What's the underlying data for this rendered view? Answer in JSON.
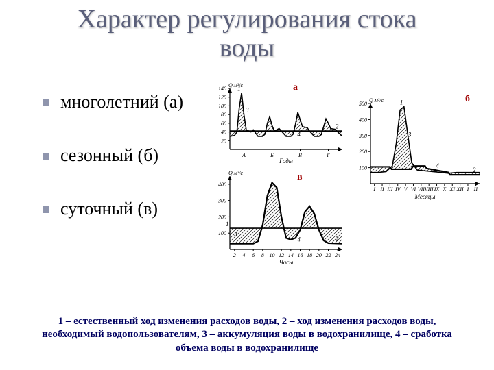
{
  "title_line1": "Характер регулирования стока",
  "title_line2": "воды",
  "bullets": [
    {
      "text": "многолетний (а)"
    },
    {
      "text": "сезонный (б)"
    },
    {
      "text": "суточный (в)"
    }
  ],
  "caption": "1 – естественный ход изменения расходов воды, 2 – ход изменения расходов воды, необходимый водопользователям, 3 – аккумуляция воды в водохранилище, 4 – сработка объема воды в водохранилище",
  "panels": {
    "a": {
      "label": "а",
      "y_label_symbol": "Q м³/с",
      "y_ticks": [
        20,
        40,
        60,
        80,
        100,
        120,
        140
      ],
      "x_label": "Годы",
      "x_ticks": [
        "А",
        "Б",
        "В",
        "Г"
      ],
      "ylim": [
        0,
        140
      ],
      "xlim": [
        0,
        48
      ],
      "background_color": "#ffffff",
      "axis_color": "#000000",
      "hatch_color": "#000000",
      "series_natural": {
        "name": "1",
        "comment": "естественный гидрограф с весенними паводками, 4 года",
        "pts": [
          [
            0,
            30
          ],
          [
            2,
            32
          ],
          [
            3,
            40
          ],
          [
            4,
            95
          ],
          [
            5,
            130
          ],
          [
            6,
            80
          ],
          [
            7,
            45
          ],
          [
            9,
            40
          ],
          [
            10,
            45
          ],
          [
            12,
            30
          ],
          [
            14,
            30
          ],
          [
            15,
            35
          ],
          [
            16,
            60
          ],
          [
            17,
            75
          ],
          [
            18,
            55
          ],
          [
            19,
            42
          ],
          [
            21,
            48
          ],
          [
            22,
            42
          ],
          [
            24,
            30
          ],
          [
            26,
            30
          ],
          [
            27,
            35
          ],
          [
            28,
            58
          ],
          [
            29,
            85
          ],
          [
            30,
            68
          ],
          [
            31,
            52
          ],
          [
            33,
            50
          ],
          [
            34,
            42
          ],
          [
            36,
            30
          ],
          [
            38,
            30
          ],
          [
            39,
            34
          ],
          [
            40,
            52
          ],
          [
            41,
            70
          ],
          [
            42,
            60
          ],
          [
            43,
            48
          ],
          [
            45,
            46
          ],
          [
            46,
            40
          ],
          [
            48,
            30
          ]
        ]
      },
      "series_regulated": {
        "name": "2",
        "level": 42,
        "pts": [
          [
            0,
            42
          ],
          [
            48,
            42
          ]
        ]
      },
      "annot": [
        "1",
        "2",
        "3",
        "4"
      ]
    },
    "b": {
      "label": "б",
      "y_label_symbol": "Q м³/с",
      "y_ticks": [
        100,
        200,
        300,
        400,
        500
      ],
      "x_label": "Месяцы",
      "x_ticks": [
        "I",
        "II",
        "III",
        "IV",
        "V",
        "VI",
        "VII",
        "VIII",
        "IX",
        "X",
        "XI",
        "XII",
        "I",
        "II"
      ],
      "ylim": [
        0,
        500
      ],
      "xlim": [
        0,
        14
      ],
      "background_color": "#ffffff",
      "axis_color": "#000000",
      "hatch_color": "#000000",
      "series_natural": {
        "name": "1",
        "pts": [
          [
            0,
            70
          ],
          [
            1,
            70
          ],
          [
            2,
            75
          ],
          [
            2.8,
            110
          ],
          [
            3.3,
            250
          ],
          [
            3.8,
            460
          ],
          [
            4.3,
            480
          ],
          [
            4.8,
            300
          ],
          [
            5.3,
            130
          ],
          [
            6,
            85
          ],
          [
            7,
            80
          ],
          [
            8,
            75
          ],
          [
            9,
            70
          ],
          [
            10,
            65
          ],
          [
            11,
            70
          ],
          [
            12,
            70
          ],
          [
            13,
            70
          ],
          [
            14,
            70
          ]
        ]
      },
      "series_regulated": {
        "name": "2",
        "pts": [
          [
            0,
            105
          ],
          [
            2.5,
            105
          ],
          [
            2.7,
            90
          ],
          [
            5.2,
            90
          ],
          [
            5.5,
            110
          ],
          [
            7,
            110
          ],
          [
            7.2,
            95
          ],
          [
            10,
            70
          ],
          [
            10.2,
            55
          ],
          [
            14,
            55
          ]
        ]
      },
      "annot": [
        "1",
        "2",
        "3",
        "4"
      ]
    },
    "v": {
      "label": "в",
      "y_label_symbol": "Q м³/с",
      "y_ticks": [
        100,
        200,
        300,
        400
      ],
      "x_label": "Часы",
      "x_ticks": [
        2,
        4,
        6,
        8,
        10,
        12,
        14,
        16,
        18,
        20,
        22,
        24
      ],
      "ylim": [
        0,
        450
      ],
      "xlim": [
        0,
        24
      ],
      "background_color": "#ffffff",
      "axis_color": "#000000",
      "hatch_color": "#000000",
      "series_natural": {
        "name": "1",
        "level": 130,
        "pts": [
          [
            0,
            130
          ],
          [
            24,
            130
          ]
        ]
      },
      "series_regulated": {
        "name": "2",
        "pts": [
          [
            0,
            35
          ],
          [
            5,
            35
          ],
          [
            6,
            50
          ],
          [
            7,
            150
          ],
          [
            8,
            330
          ],
          [
            9,
            410
          ],
          [
            10,
            380
          ],
          [
            11,
            200
          ],
          [
            12,
            70
          ],
          [
            13,
            60
          ],
          [
            14,
            70
          ],
          [
            15,
            120
          ],
          [
            16,
            230
          ],
          [
            17,
            265
          ],
          [
            18,
            220
          ],
          [
            19,
            120
          ],
          [
            20,
            55
          ],
          [
            21,
            38
          ],
          [
            24,
            35
          ]
        ]
      },
      "annot": [
        "1",
        "2",
        "3",
        "4"
      ]
    }
  }
}
